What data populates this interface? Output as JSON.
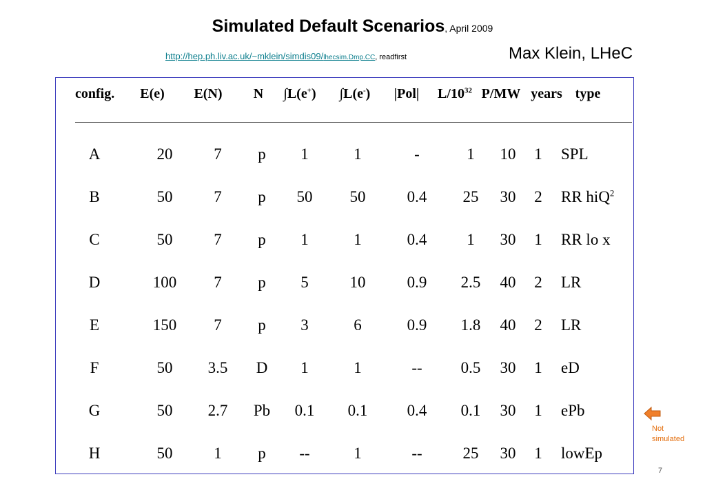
{
  "header": {
    "title": "Simulated Default Scenarios",
    "date": ", April 2009",
    "url_main": "http://hep.ph.liv.ac.uk/~mklein/simdis09/",
    "url_small": "lhecsim.Dmp.CC",
    "url_extra": ", readfirst",
    "author": "Max Klein, LHeC"
  },
  "table": {
    "headers": {
      "config": "config.",
      "ee": "E(e)",
      "en": "E(N)",
      "n": "N",
      "lep_prefix": "∫L(e",
      "lep_sup": "+",
      "lep_suffix": ")",
      "lem_prefix": "∫L(e",
      "lem_sup": "-",
      "lem_suffix": ")",
      "pol": "|Pol|",
      "lumi_prefix": "L/10",
      "lumi_sup": "32",
      "pmw": "P/MW",
      "years": "years",
      "type": "type"
    },
    "rows": [
      {
        "config": "A",
        "ee": "20",
        "en": "7",
        "n": "p",
        "lep": "1",
        "lem": "1",
        "pol": "-",
        "l": "1",
        "p": "10",
        "y": "1",
        "type": "SPL",
        "type_sup": ""
      },
      {
        "config": "B",
        "ee": "50",
        "en": "7",
        "n": "p",
        "lep": "50",
        "lem": "50",
        "pol": "0.4",
        "l": "25",
        "p": "30",
        "y": "2",
        "type": "RR hiQ",
        "type_sup": "2"
      },
      {
        "config": "C",
        "ee": "50",
        "en": "7",
        "n": "p",
        "lep": "1",
        "lem": "1",
        "pol": "0.4",
        "l": "1",
        "p": "30",
        "y": "1",
        "type": "RR lo x",
        "type_sup": ""
      },
      {
        "config": "D",
        "ee": "100",
        "en": "7",
        "n": "p",
        "lep": "5",
        "lem": "10",
        "pol": "0.9",
        "l": "2.5",
        "p": "40",
        "y": "2",
        "type": "LR",
        "type_sup": ""
      },
      {
        "config": "E",
        "ee": "150",
        "en": "7",
        "n": "p",
        "lep": "3",
        "lem": "6",
        "pol": "0.9",
        "l": "1.8",
        "p": "40",
        "y": "2",
        "type": "LR",
        "type_sup": ""
      },
      {
        "config": "F",
        "ee": "50",
        "en": "3.5",
        "n": "D",
        "lep": "1",
        "lem": "1",
        "pol": "--",
        "l": "0.5",
        "p": "30",
        "y": "1",
        "type": "eD",
        "type_sup": ""
      },
      {
        "config": "G",
        "ee": "50",
        "en": "2.7",
        "n": "Pb",
        "lep": "0.1",
        "lem": "0.1",
        "pol": "0.4",
        "l": "0.1",
        "p": "30",
        "y": "1",
        "type": "ePb",
        "type_sup": ""
      },
      {
        "config": "H",
        "ee": "50",
        "en": "1",
        "n": "p",
        "lep": "--",
        "lem": "1",
        "pol": "--",
        "l": "25",
        "p": "30",
        "y": "1",
        "type": "lowEp",
        "type_sup": ""
      }
    ]
  },
  "side_note": {
    "line1": "Not",
    "line2": "simulated",
    "icon": "left-arrow-icon",
    "color": "#e36c0a"
  },
  "page_number": "7",
  "colors": {
    "link": "#0a7d8c",
    "table_border": "#3b3bbd",
    "note": "#e36c0a"
  }
}
